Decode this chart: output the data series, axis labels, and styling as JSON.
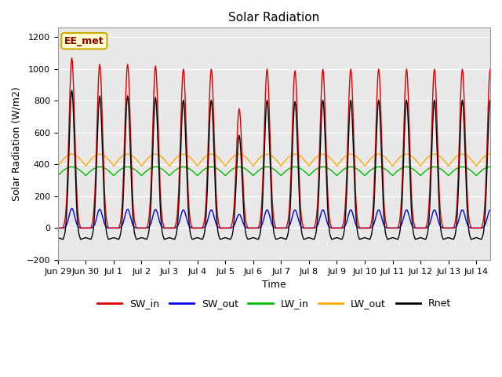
{
  "title": "Solar Radiation",
  "ylabel": "Solar Radiation (W/m2)",
  "xlabel": "Time",
  "ylim": [
    -200,
    1260
  ],
  "annotation_text": "EE_met",
  "annotation_bg": "#FFFFCC",
  "annotation_border": "#CCAA00",
  "plot_bg": "#E8E8E8",
  "series_colors": {
    "SW_in": "#DD0000",
    "SW_out": "#0000EE",
    "LW_in": "#00BB00",
    "LW_out": "#FFAA00",
    "Rnet": "#000000"
  },
  "tick_labels": [
    "Jun 29",
    "Jun 30",
    "Jul 1",
    "Jul 2",
    "Jul 3",
    "Jul 4",
    "Jul 5",
    "Jul 6",
    "Jul 7",
    "Jul 8",
    "Jul 9",
    "Jul 10",
    "Jul 11",
    "Jul 12",
    "Jul 13",
    "Jul 14"
  ],
  "figsize": [
    6.4,
    4.8
  ],
  "dpi": 100
}
